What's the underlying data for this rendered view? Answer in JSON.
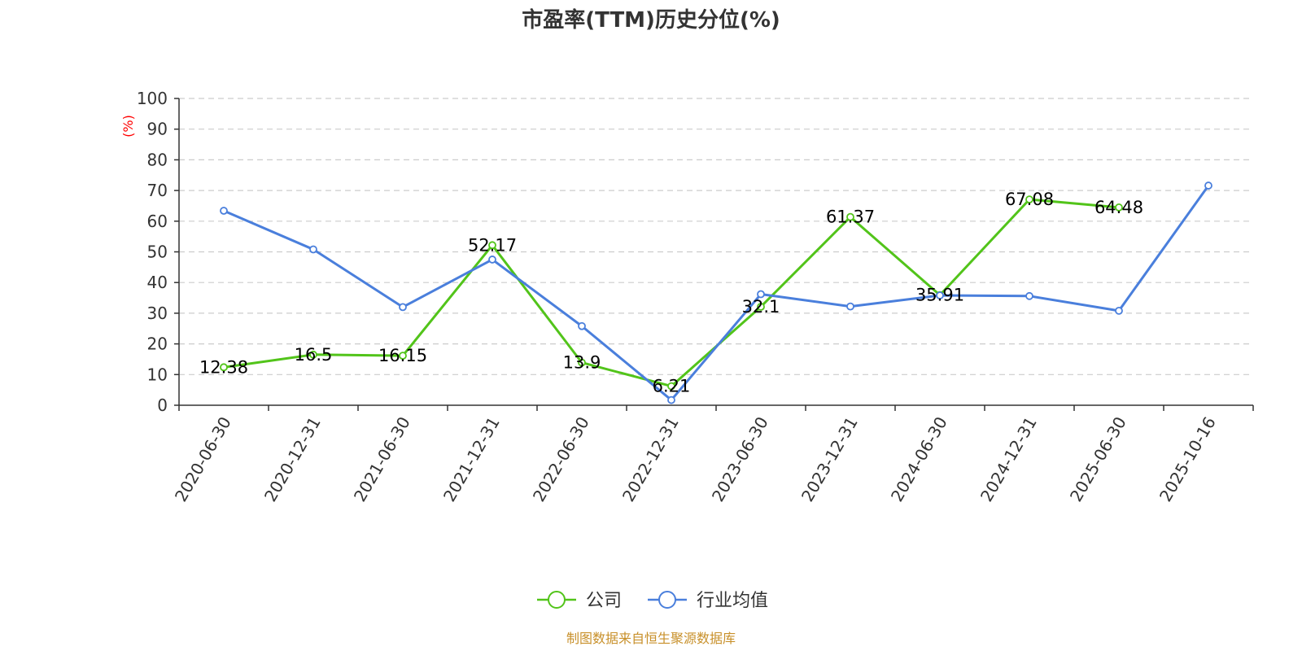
{
  "chart_data": {
    "type": "line",
    "title": "市盈率(TTM)历史分位(%)",
    "ylabel": "(%)",
    "ylim": [
      0,
      100
    ],
    "ytick_step": 10,
    "grid": true,
    "legend_position": "bottom-center",
    "categories": [
      "2020-06-30",
      "2020-12-31",
      "2021-06-30",
      "2021-12-31",
      "2022-06-30",
      "2022-12-31",
      "2023-06-30",
      "2023-12-31",
      "2024-06-30",
      "2024-12-31",
      "2025-06-30",
      "2025-10-16"
    ],
    "series": [
      {
        "name": "公司",
        "color": "#52c41a",
        "values": [
          12.38,
          16.5,
          16.15,
          52.17,
          13.9,
          6.21,
          32.1,
          61.37,
          35.91,
          67.08,
          64.48,
          null
        ],
        "labels": [
          "12.38",
          "16.5",
          "16.15",
          "52.17",
          "13.9",
          "6.21",
          "32.1",
          "61.37",
          "35.91",
          "67.08",
          "64.48",
          null
        ]
      },
      {
        "name": "行业均值",
        "color": "#4a7fdc",
        "values": [
          63.4,
          50.8,
          32.0,
          47.5,
          25.8,
          1.7,
          36.2,
          32.2,
          35.8,
          35.6,
          30.8,
          71.6
        ]
      }
    ]
  },
  "source_text": "制图数据来自恒生聚源数据库",
  "colors": {
    "text": "#333333",
    "axis": "#333333",
    "grid": "#cccccc",
    "ylabel": "#ff0000",
    "source": "#c8902a"
  }
}
